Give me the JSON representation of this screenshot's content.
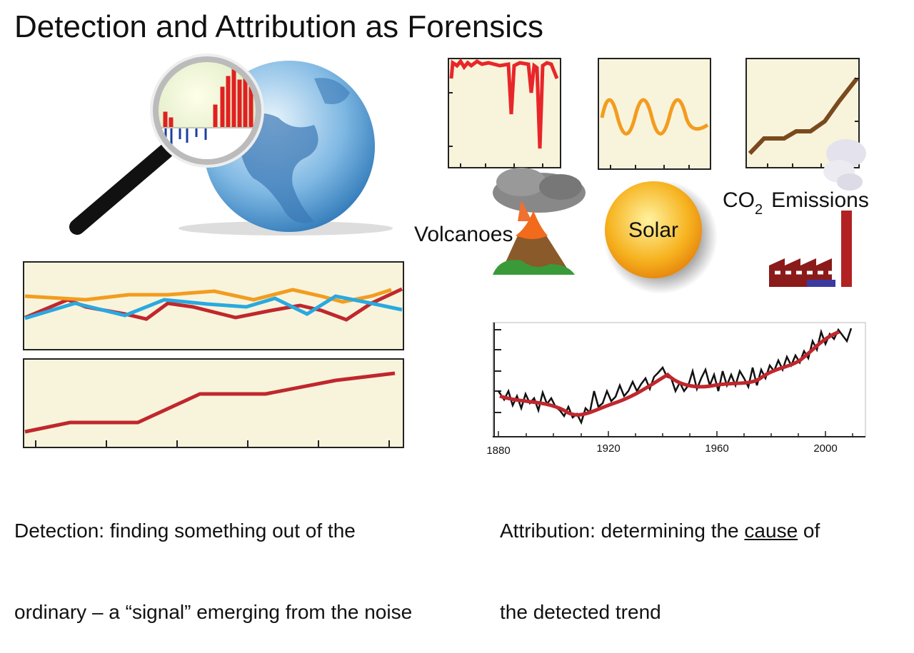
{
  "header": {
    "title": "Detection and Attribution as Forensics"
  },
  "forcings": {
    "volcanoes": "Volcanoes",
    "solar": "Solar",
    "co2": {
      "main": "CO",
      "subscript": "2",
      "rest": "Emissions"
    }
  },
  "attribution_chart": {
    "xtick_labels": [
      "1880",
      "1920",
      "1960",
      "2000"
    ]
  },
  "captions": {
    "detection": {
      "line1": "Detection: finding something out of the",
      "line2": "ordinary – a “signal” emerging from the noise"
    },
    "attribution": {
      "line1_start": "Attribution: determining the",
      "line1_emphasis": "cause",
      "line1_end": "of",
      "line2": "the detected trend"
    }
  }
}
